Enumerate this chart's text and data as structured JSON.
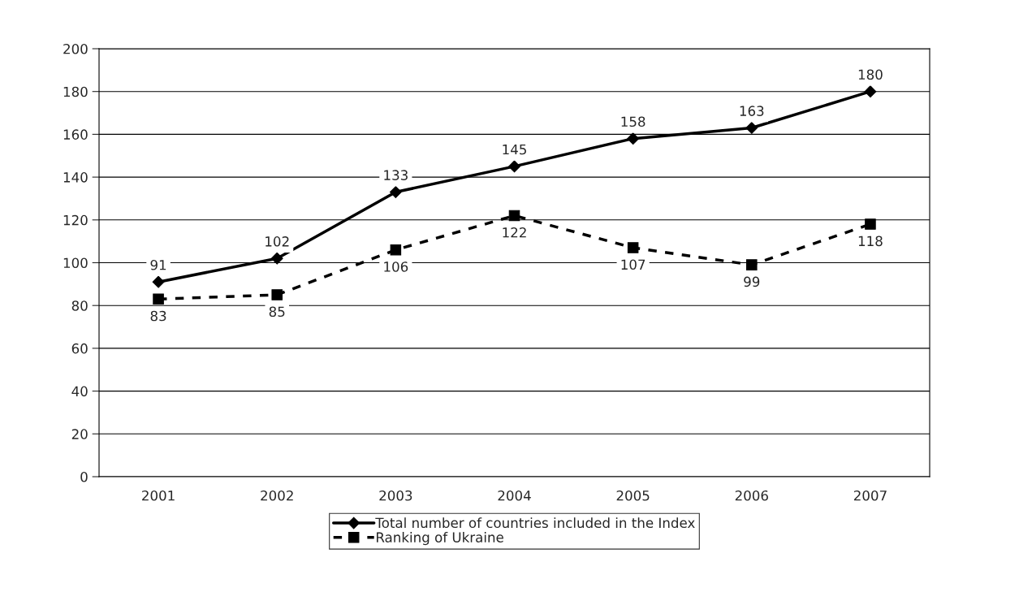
{
  "chart_data": {
    "type": "line",
    "categories": [
      "2001",
      "2002",
      "2003",
      "2004",
      "2005",
      "2006",
      "2007"
    ],
    "series": [
      {
        "name": "Total number of countries included in the Index",
        "color": "#000000",
        "marker": "diamond",
        "line_style": "solid",
        "values": [
          91,
          102,
          133,
          145,
          158,
          163,
          180
        ]
      },
      {
        "name": "Ranking of Ukraine",
        "color": "#000000",
        "marker": "square",
        "line_style": "dashed",
        "values": [
          83,
          85,
          106,
          122,
          107,
          99,
          118
        ]
      }
    ],
    "ylim": [
      0,
      200
    ],
    "yticks": [
      0,
      20,
      40,
      60,
      80,
      100,
      120,
      140,
      160,
      180,
      200
    ],
    "grid": "y",
    "legend": "bottom",
    "data_labels": true
  }
}
